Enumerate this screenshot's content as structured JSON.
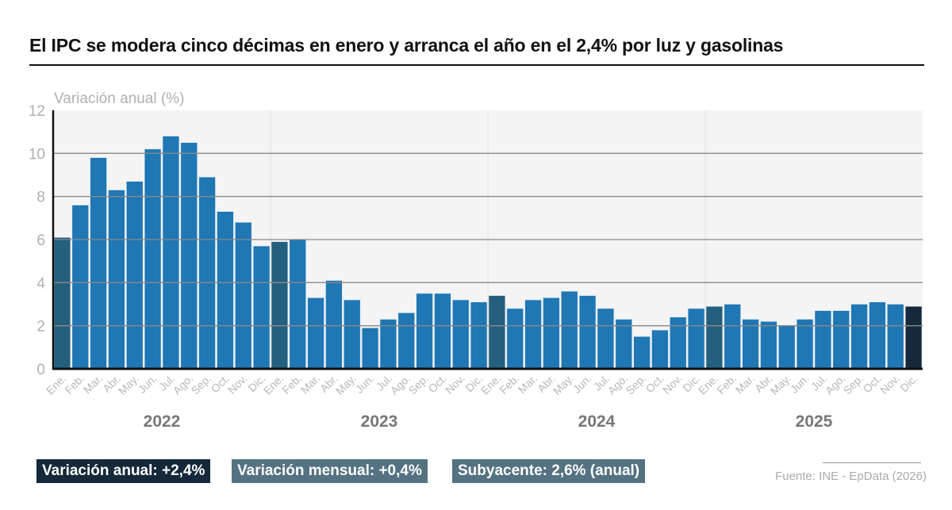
{
  "title": "El IPC se modera cinco décimas en enero y arranca el año en el 2,4% por luz y gasolinas",
  "badges": [
    "Variación anual: +2,4%",
    "Variación mensual: +0,4%",
    "Subyacente: 2,6% (anual)"
  ],
  "source": "Fuente: INE - EpData (2026)",
  "colors": {
    "bar": "#1f77b4",
    "january_bar": "#245f7e",
    "last_bar": "#15293a",
    "plot_bg": "#f4f4f4",
    "grid": "#8a8a8a"
  },
  "chart_data": {
    "type": "bar",
    "ylabel": "Variación anual (%)",
    "ylim": [
      0,
      12
    ],
    "yticks": [
      0,
      2,
      4,
      6,
      8,
      10,
      12
    ],
    "grid": true,
    "years": [
      "2022",
      "2023",
      "2024",
      "2025"
    ],
    "month_labels": [
      "Ene.",
      "Feb.",
      "Mar.",
      "Abr.",
      "May.",
      "Jun.",
      "Jul.",
      "Ago.",
      "Sep.",
      "Oct.",
      "Nov.",
      "Dic."
    ],
    "values": [
      6.1,
      7.6,
      9.8,
      8.3,
      8.7,
      10.2,
      10.8,
      10.5,
      8.9,
      7.3,
      6.8,
      5.7,
      5.9,
      6.0,
      3.3,
      4.1,
      3.2,
      1.9,
      2.3,
      2.6,
      3.5,
      3.5,
      3.2,
      3.1,
      3.4,
      2.8,
      3.2,
      3.3,
      3.6,
      3.4,
      2.8,
      2.3,
      1.5,
      1.8,
      2.4,
      2.8,
      2.9,
      3.0,
      2.3,
      2.2,
      2.0,
      2.3,
      2.7,
      2.7,
      3.0,
      3.1,
      3.0,
      2.9
    ]
  }
}
